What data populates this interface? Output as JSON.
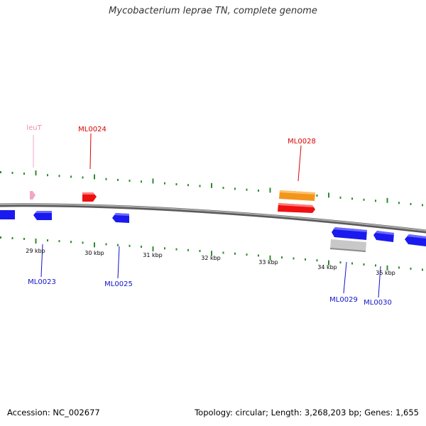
{
  "title": "Mycobacterium leprae TN, complete genome",
  "footer": {
    "accession": "Accession: NC_002677",
    "summary": "Topology: circular; Length: 3,268,203 bp; Genes: 1,655"
  },
  "colors": {
    "backbone": "#8a8a8a",
    "tick": "#2e8b2e",
    "forward_gene": "#ee1111",
    "reverse_gene": "#1a1aee",
    "trna": "#f4a6c8",
    "other_feature": "#f2961a",
    "pseudo": "#c8c8c8"
  },
  "scale_labels": [
    "29 kbp",
    "30 kbp",
    "31 kbp",
    "32 kbp",
    "33 kbp",
    "34 kbp",
    "35 kbp"
  ],
  "gene_labels": [
    {
      "name": "leuT",
      "color": "#f08ab8"
    },
    {
      "name": "ML0024",
      "color": "#dd0000"
    },
    {
      "name": "ML0028",
      "color": "#dd0000"
    },
    {
      "name": "ML0023",
      "color": "#1111cc"
    },
    {
      "name": "ML0025",
      "color": "#1111cc"
    },
    {
      "name": "ML0029",
      "color": "#1111cc"
    },
    {
      "name": "ML0030",
      "color": "#1111cc"
    }
  ]
}
